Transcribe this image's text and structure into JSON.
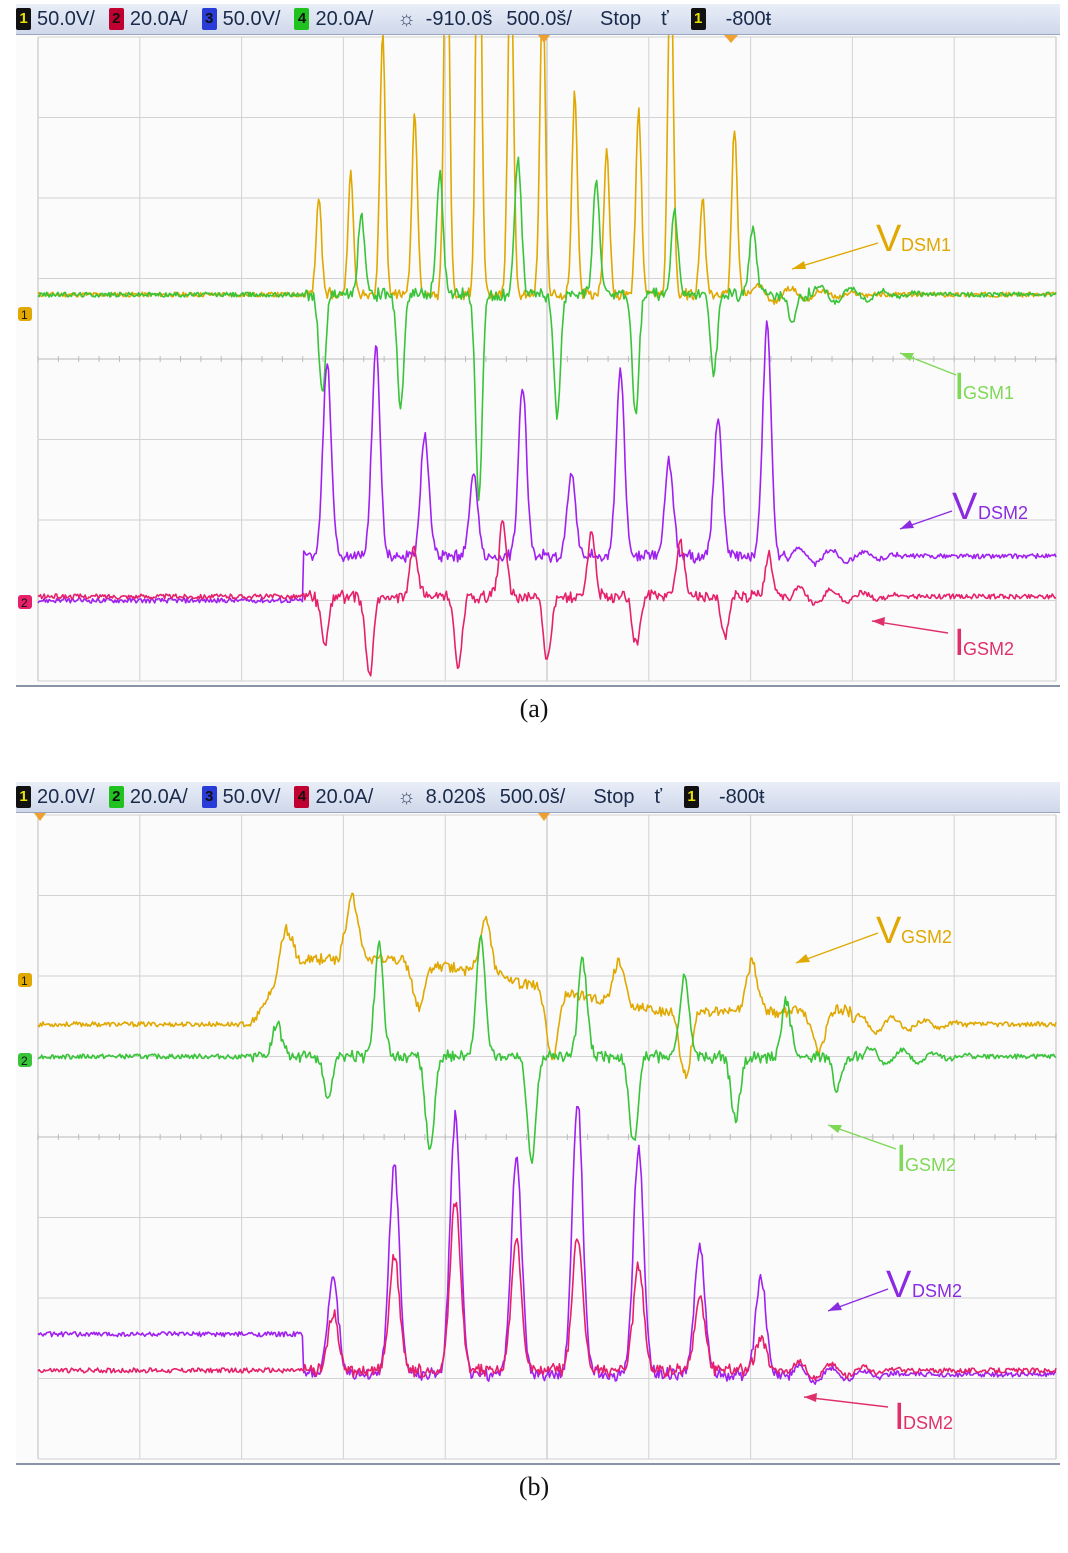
{
  "panels": [
    {
      "caption": "(a)",
      "header": {
        "ch1": {
          "num": "1",
          "scale": "50.0V/",
          "color": "#e8e000"
        },
        "ch2": {
          "num": "2",
          "scale": "20.0A/",
          "color": "#d0003a"
        },
        "ch3": {
          "num": "3",
          "scale": "50.0V/",
          "color": "#2a3cd8"
        },
        "ch4": {
          "num": "4",
          "scale": "20.0A/",
          "color": "#1fc21f"
        },
        "delay": "-910.0š",
        "timebase": "500.0š/",
        "status": "Stop",
        "trig_slope": "ť",
        "trig_ch": "1",
        "trig_level": "-800ŧ"
      },
      "labels": [
        {
          "main": "V",
          "sub": "DSM1",
          "color": "#e0a800"
        },
        {
          "main": "I",
          "sub": "GSM1",
          "color": "#7ed957"
        },
        {
          "main": "V",
          "sub": "DSM2",
          "color": "#8a2be2"
        },
        {
          "main": "I",
          "sub": "GSM2",
          "color": "#e0306a"
        }
      ],
      "ref_markers": [
        "1",
        "2"
      ]
    },
    {
      "caption": "(b)",
      "header": {
        "ch1": {
          "num": "1",
          "scale": "20.0V/",
          "color": "#e8e000"
        },
        "ch2": {
          "num": "2",
          "scale": "20.0A/",
          "color": "#1fc21f"
        },
        "ch3": {
          "num": "3",
          "scale": "50.0V/",
          "color": "#2a3cd8"
        },
        "ch4": {
          "num": "4",
          "scale": "20.0A/",
          "color": "#d0003a"
        },
        "delay": "8.020š",
        "timebase": "500.0š/",
        "status": "Stop",
        "trig_slope": "ť",
        "trig_ch": "1",
        "trig_level": "-800ŧ"
      },
      "labels": [
        {
          "main": "V",
          "sub": "GSM2",
          "color": "#e0a800"
        },
        {
          "main": "I",
          "sub": "GSM2",
          "color": "#7ed957"
        },
        {
          "main": "V",
          "sub": "DSM2",
          "color": "#8a2be2"
        },
        {
          "main": "I",
          "sub": "DSM2",
          "color": "#e0306a"
        }
      ],
      "ref_markers": [
        "1",
        "2"
      ]
    }
  ],
  "chart_data": [
    {
      "type": "line",
      "title": "",
      "grid": true,
      "x_divisions": 10,
      "y_divisions": 8,
      "series": [
        {
          "name": "VDSM1",
          "color": "#e0a800",
          "baseline_div": 4.8,
          "burst": [
            2.6,
            7.0
          ],
          "peaks_div": [
            1.2,
            1.5,
            3.2,
            2.2,
            5.2,
            5.9,
            4.4,
            3.8,
            2.5,
            1.8,
            2.3,
            4.3,
            1.2,
            2.1
          ]
        },
        {
          "name": "IGSM1",
          "color": "#39c43a",
          "baseline_div": 4.8,
          "burst": [
            2.6,
            7.6
          ],
          "peaks_div": [
            -1.2,
            1.0,
            -1.4,
            1.5,
            -2.5,
            1.7,
            -1.5,
            1.4,
            -1.5,
            1.0,
            -1.0,
            0.8,
            -0.4
          ]
        },
        {
          "name": "VDSM2",
          "color": "#a020f0",
          "baseline_div": 1.0,
          "step_at_div": 2.6,
          "step_to_div": 1.55,
          "peaks_div": [
            2.4,
            2.6,
            1.5,
            1.0,
            2.1,
            1.0,
            2.3,
            1.2,
            1.7,
            2.9
          ]
        },
        {
          "name": "IGSM2",
          "color": "#e6206a",
          "baseline_div": 1.05,
          "peaks_div": [
            -0.6,
            -1.0,
            0.6,
            -0.9,
            0.9,
            -0.8,
            0.8,
            -0.6,
            0.7,
            -0.5,
            0.5
          ]
        }
      ]
    },
    {
      "type": "line",
      "title": "",
      "grid": true,
      "x_divisions": 10,
      "y_divisions": 8,
      "series": [
        {
          "name": "VGSM2",
          "color": "#e0a800",
          "baseline_div": 5.4,
          "plateau_div": 6.2,
          "burst": [
            2.1,
            8.0
          ],
          "peaks_div": [
            0.5,
            0.8,
            -0.6,
            0.7,
            -0.9,
            0.5,
            -0.8,
            0.6,
            -0.5
          ]
        },
        {
          "name": "IGSM2",
          "color": "#39c43a",
          "baseline_div": 5.0,
          "burst": [
            2.1,
            8.1
          ],
          "peaks_div": [
            0.4,
            -0.5,
            1.4,
            -1.2,
            1.5,
            -1.3,
            1.2,
            -1.1,
            1.0,
            -0.8,
            0.7,
            -0.4
          ]
        },
        {
          "name": "VDSM2",
          "color": "#a020f0",
          "baseline_div": 1.55,
          "step_to_div": 1.05,
          "peaks_div": [
            1.2,
            2.6,
            3.2,
            2.7,
            3.4,
            2.8,
            1.6,
            1.2
          ]
        },
        {
          "name": "IDSM2",
          "color": "#e6206a",
          "baseline_div": 1.1,
          "peaks_div": [
            0.7,
            1.4,
            2.1,
            1.6,
            1.7,
            1.3,
            0.9,
            0.4
          ]
        }
      ]
    }
  ]
}
